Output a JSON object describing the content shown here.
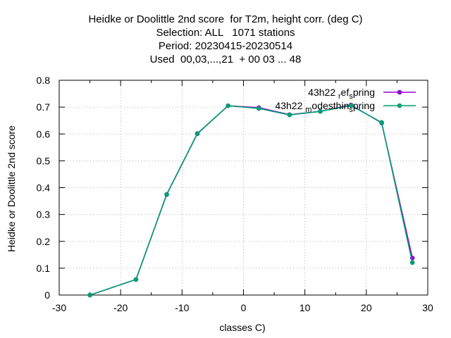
{
  "title_lines": [
    "Heidke or Doolittle 2nd score  for T2m, height corr. (deg C)",
    "Selection: ALL   1071 stations",
    "Period: 20230415-20230514",
    "Used  00,03,...,21  + 00 03 ... 48"
  ],
  "chart_data": {
    "type": "line",
    "title": "Heidke or Doolittle 2nd score  for T2m, height corr. (deg C)",
    "xlabel": "classes C)",
    "ylabel": "Heidke or Doolittle 2nd score",
    "xlim": [
      -30,
      30
    ],
    "ylim": [
      0,
      0.8
    ],
    "xticks": [
      -30,
      -20,
      -10,
      0,
      10,
      20,
      30
    ],
    "yticks": [
      0,
      0.1,
      0.2,
      0.3,
      0.4,
      0.5,
      0.6,
      0.7,
      0.8
    ],
    "grid": true,
    "legend_position": "top-right",
    "series": [
      {
        "name": "43h22_ref_spring",
        "legend_parts": [
          "43h22 ",
          "r",
          "ef",
          "s",
          "pring"
        ],
        "color": "#9400d3",
        "x": [
          -25,
          -17.5,
          -12.5,
          -7.5,
          -2.5,
          2.5,
          7.5,
          12.5,
          17.5,
          22.5,
          27.5
        ],
        "y": [
          0.0,
          0.058,
          0.374,
          0.601,
          0.705,
          0.698,
          0.672,
          0.684,
          0.708,
          0.641,
          0.138
        ]
      },
      {
        "name": "43h22_modesthin_spring",
        "legend_parts": [
          "43h22 ",
          "m",
          "odesthin",
          "s",
          "pring"
        ],
        "color": "#009e73",
        "x": [
          -25,
          -17.5,
          -12.5,
          -7.5,
          -2.5,
          2.5,
          7.5,
          12.5,
          17.5,
          22.5,
          27.5
        ],
        "y": [
          0.0,
          0.058,
          0.375,
          0.602,
          0.705,
          0.695,
          0.671,
          0.684,
          0.706,
          0.643,
          0.121
        ]
      }
    ]
  }
}
